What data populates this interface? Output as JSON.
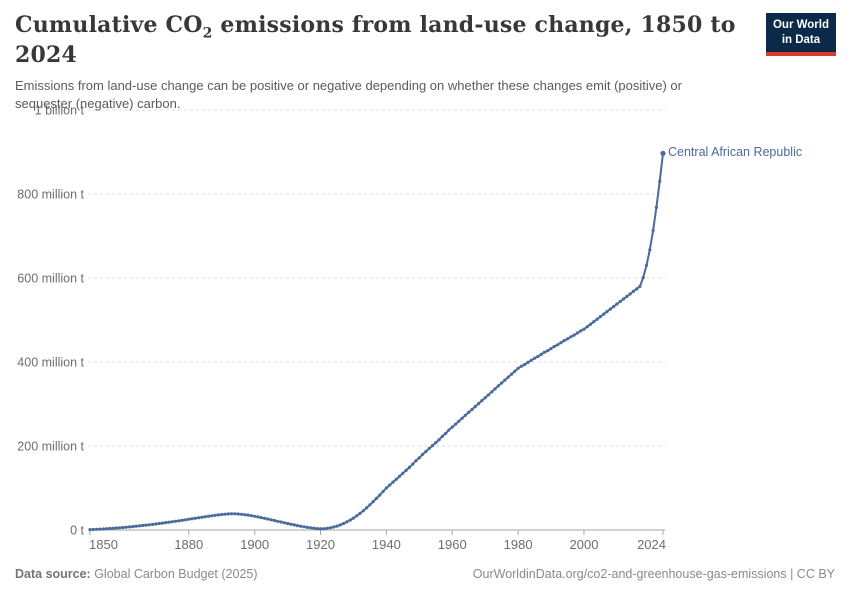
{
  "header": {
    "title_pre": "Cumulative CO",
    "title_sub": "2",
    "title_post": " emissions from land-use change, 1850 to 2024",
    "subtitle": "Emissions from land-use change can be positive or negative depending on whether these changes emit (positive) or sequester (negative) carbon."
  },
  "logo": {
    "line1": "Our World",
    "line2": "in Data",
    "bg_color": "#0b2949",
    "accent_color": "#dc3a2b"
  },
  "footer": {
    "datasource_label": "Data source:",
    "datasource_value": " Global Carbon Budget (2025)",
    "link": "OurWorldinData.org/co2-and-greenhouse-gas-emissions | CC BY"
  },
  "chart_data": {
    "type": "line",
    "title": "Cumulative CO2 emissions from land-use change, 1850 to 2024",
    "unit": "tonnes",
    "xlim": [
      1850,
      2024
    ],
    "ylim": [
      0,
      1000
    ],
    "grid": "horizontal-dashed",
    "legend": "series-label-at-line-end",
    "x_ticks": [
      1850,
      1880,
      1900,
      1920,
      1940,
      1960,
      1980,
      2000,
      2024
    ],
    "y_ticks": [
      {
        "value": 0,
        "label": "0 t"
      },
      {
        "value": 200,
        "label": "200 million t"
      },
      {
        "value": 400,
        "label": "400 million t"
      },
      {
        "value": 600,
        "label": "600 million t"
      },
      {
        "value": 800,
        "label": "800 million t"
      },
      {
        "value": 1000,
        "label": "1 billion t"
      }
    ],
    "colors": {
      "line": "#4C6A9C",
      "label": "#4C6A9C",
      "grid": "#dcdcdc",
      "axis": "#a5a5a5",
      "tick_text": "#6e6e6e"
    },
    "series": [
      {
        "name": "Central African Republic",
        "start_year": 1850,
        "end_year": 2024,
        "unit": "million t",
        "values": [
          1,
          1.3,
          1.7,
          2.1,
          2.5,
          3,
          3.5,
          4.1,
          4.7,
          5.3,
          6,
          6.7,
          7.4,
          8.2,
          9,
          9.8,
          10.7,
          11.6,
          12.5,
          13.4,
          14.4,
          15.4,
          16.4,
          17.5,
          18.6,
          19.7,
          20.8,
          22,
          23.2,
          24.4,
          25.6,
          26.8,
          28,
          29.2,
          30.4,
          31.6,
          32.8,
          33.9,
          35,
          36,
          36.9,
          37.7,
          38.3,
          38.6,
          38.5,
          38.1,
          37.4,
          36.5,
          35.4,
          34.1,
          32.7,
          31.2,
          29.6,
          27.9,
          26.2,
          24.4,
          22.6,
          20.8,
          19,
          17.2,
          15.5,
          13.8,
          12.1,
          10.5,
          9,
          7.6,
          6.3,
          5.2,
          4.2,
          3.4,
          3,
          3.2,
          4,
          5.3,
          7.1,
          9.4,
          12.2,
          15.5,
          19.3,
          23.6,
          28.4,
          33.7,
          39.5,
          45.8,
          52.6,
          59.9,
          67.7,
          75.4,
          83.4,
          91.6,
          100,
          107,
          114,
          121,
          128,
          135,
          142,
          149,
          157,
          165,
          172,
          180,
          187,
          194,
          201,
          208,
          215,
          223,
          230,
          238,
          245,
          252,
          259,
          266,
          273,
          280,
          287,
          294,
          301,
          308,
          315,
          322,
          329,
          336,
          343,
          350,
          357,
          364,
          371,
          378,
          385,
          390,
          394,
          399,
          404,
          409,
          413,
          418,
          423,
          427,
          432,
          437,
          441,
          446,
          451,
          455,
          460,
          464,
          469,
          474,
          478,
          484,
          490,
          496,
          502,
          508,
          514,
          520,
          526,
          532,
          538,
          544,
          550,
          556,
          562,
          568,
          574,
          580,
          601,
          630,
          667,
          713,
          768,
          830,
          897
        ]
      }
    ]
  }
}
